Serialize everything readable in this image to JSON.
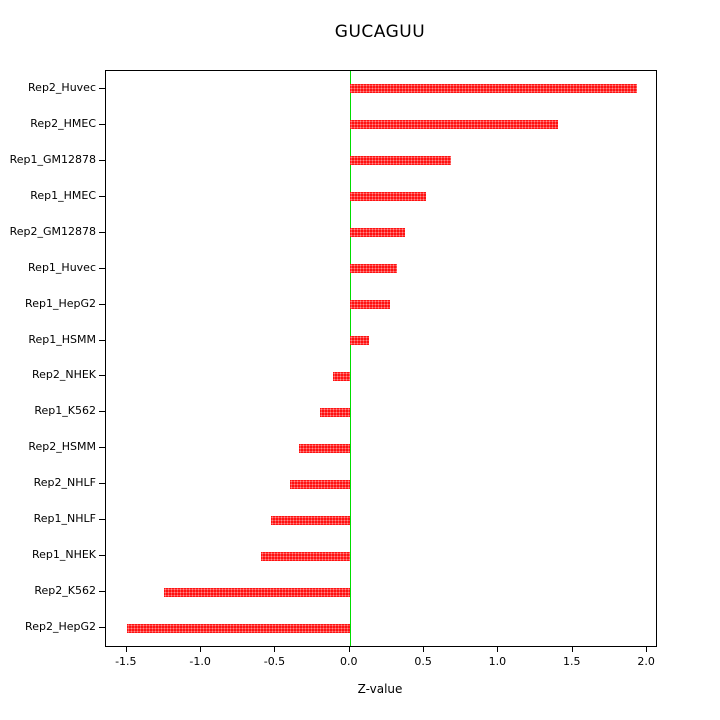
{
  "title": "GUCAGUU",
  "chart_data": {
    "type": "bar",
    "orientation": "horizontal",
    "title": "GUCAGUU",
    "xlabel": "Z-value",
    "ylabel": "",
    "xlim": [
      -1.64,
      2.06
    ],
    "x_ticks": [
      -1.5,
      -1.0,
      -0.5,
      0.0,
      0.5,
      1.0,
      1.5,
      2.0
    ],
    "x_tick_labels": [
      "-1.5",
      "-1.0",
      "-0.5",
      "0.0",
      "0.5",
      "1.0",
      "1.5",
      "2.0"
    ],
    "categories": [
      "Rep2_Huvec",
      "Rep2_HMEC",
      "Rep1_GM12878",
      "Rep1_HMEC",
      "Rep2_GM12878",
      "Rep1_Huvec",
      "Rep1_HepG2",
      "Rep1_HSMM",
      "Rep2_NHEK",
      "Rep1_K562",
      "Rep2_HSMM",
      "Rep2_NHLF",
      "Rep1_NHLF",
      "Rep1_NHEK",
      "Rep2_K562",
      "Rep2_HepG2"
    ],
    "values": [
      1.93,
      1.4,
      0.68,
      0.51,
      0.37,
      0.32,
      0.27,
      0.13,
      -0.11,
      -0.2,
      -0.34,
      -0.4,
      -0.53,
      -0.6,
      -1.25,
      -1.5
    ],
    "bar_color": "#ff0000",
    "zero_line_color": "#00dd00",
    "axis_color": "#000000",
    "grid": false,
    "legend": false
  }
}
